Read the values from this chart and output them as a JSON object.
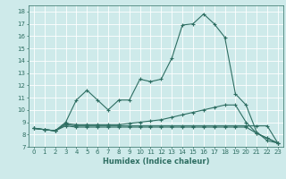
{
  "xlabel": "Humidex (Indice chaleur)",
  "ylabel": "",
  "bg_color": "#ceeaea",
  "grid_color": "#ffffff",
  "line_color": "#2e6e62",
  "xlim": [
    -0.5,
    23.5
  ],
  "ylim": [
    7,
    18.5
  ],
  "xticks": [
    0,
    1,
    2,
    3,
    4,
    5,
    6,
    7,
    8,
    9,
    10,
    11,
    12,
    13,
    14,
    15,
    16,
    17,
    18,
    19,
    20,
    21,
    22,
    23
  ],
  "yticks": [
    7,
    8,
    9,
    10,
    11,
    12,
    13,
    14,
    15,
    16,
    17,
    18
  ],
  "series": [
    [
      8.5,
      8.4,
      8.3,
      9.0,
      10.8,
      11.6,
      10.8,
      10.0,
      10.8,
      10.8,
      12.5,
      12.3,
      12.5,
      14.2,
      16.9,
      17.0,
      17.8,
      17.0,
      15.9,
      11.3,
      10.4,
      8.2,
      7.5,
      7.3
    ],
    [
      8.5,
      8.4,
      8.3,
      8.9,
      8.8,
      8.8,
      8.8,
      8.8,
      8.8,
      8.9,
      9.0,
      9.1,
      9.2,
      9.4,
      9.6,
      9.8,
      10.0,
      10.2,
      10.4,
      10.4,
      9.0,
      8.1,
      7.7,
      7.3
    ],
    [
      8.5,
      8.4,
      8.3,
      8.8,
      8.7,
      8.7,
      8.7,
      8.7,
      8.7,
      8.7,
      8.7,
      8.7,
      8.7,
      8.7,
      8.7,
      8.7,
      8.7,
      8.7,
      8.7,
      8.7,
      8.7,
      8.7,
      8.7,
      7.3
    ],
    [
      8.5,
      8.4,
      8.3,
      8.7,
      8.6,
      8.6,
      8.6,
      8.6,
      8.6,
      8.6,
      8.6,
      8.6,
      8.6,
      8.6,
      8.6,
      8.6,
      8.6,
      8.6,
      8.6,
      8.6,
      8.6,
      8.1,
      7.7,
      7.3
    ]
  ],
  "marker_size": 3,
  "linewidth": 0.8,
  "tick_fontsize": 5.0,
  "xlabel_fontsize": 6.0
}
